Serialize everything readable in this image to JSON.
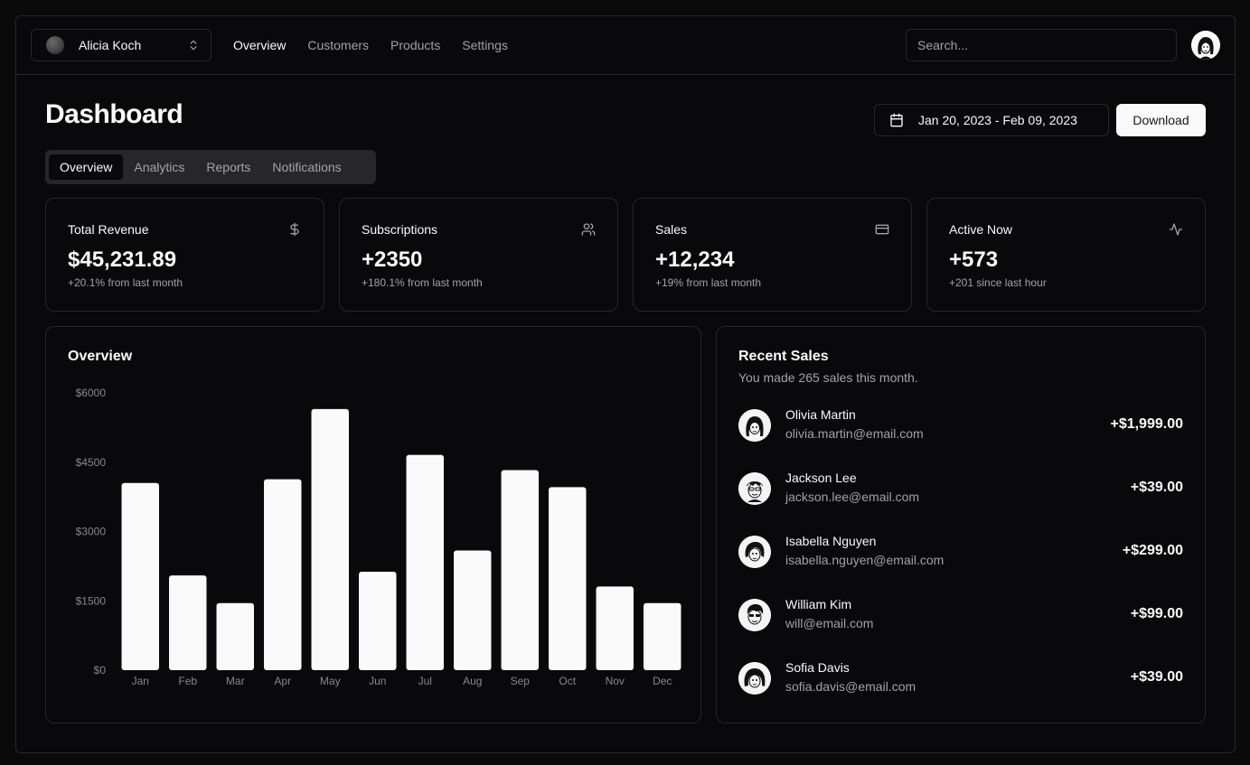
{
  "team": {
    "name": "Alicia Koch"
  },
  "nav": {
    "links": [
      {
        "label": "Overview",
        "active": true
      },
      {
        "label": "Customers",
        "active": false
      },
      {
        "label": "Products",
        "active": false
      },
      {
        "label": "Settings",
        "active": false
      }
    ]
  },
  "search": {
    "placeholder": "Search..."
  },
  "header": {
    "title": "Dashboard",
    "date_range": "Jan 20, 2023 - Feb 09, 2023",
    "download_label": "Download"
  },
  "tabs": [
    {
      "label": "Overview",
      "active": true
    },
    {
      "label": "Analytics",
      "active": false
    },
    {
      "label": "Reports",
      "active": false
    },
    {
      "label": "Notifications",
      "active": false
    }
  ],
  "stats": [
    {
      "title": "Total Revenue",
      "value": "$45,231.89",
      "sub": "+20.1% from last month",
      "icon": "dollar-icon"
    },
    {
      "title": "Subscriptions",
      "value": "+2350",
      "sub": "+180.1% from last month",
      "icon": "users-icon"
    },
    {
      "title": "Sales",
      "value": "+12,234",
      "sub": "+19% from last month",
      "icon": "credit-card-icon"
    },
    {
      "title": "Active Now",
      "value": "+573",
      "sub": "+201 since last hour",
      "icon": "activity-icon"
    }
  ],
  "overview": {
    "title": "Overview"
  },
  "chart_data": {
    "type": "bar",
    "title": "Overview",
    "categories": [
      "Jan",
      "Feb",
      "Mar",
      "Apr",
      "May",
      "Jun",
      "Jul",
      "Aug",
      "Sep",
      "Oct",
      "Nov",
      "Dec"
    ],
    "values": [
      4050,
      2050,
      1450,
      4130,
      5650,
      2130,
      4660,
      2590,
      4330,
      3960,
      1810,
      1450
    ],
    "y_ticks": [
      "$0",
      "$1500",
      "$3000",
      "$4500",
      "$6000"
    ],
    "ylim": [
      0,
      6000
    ],
    "grid": false,
    "bar_color": "#fafafa"
  },
  "recent_sales": {
    "title": "Recent Sales",
    "description": "You made 265 sales this month.",
    "items": [
      {
        "name": "Olivia Martin",
        "email": "olivia.martin@email.com",
        "amount": "+$1,999.00"
      },
      {
        "name": "Jackson Lee",
        "email": "jackson.lee@email.com",
        "amount": "+$39.00"
      },
      {
        "name": "Isabella Nguyen",
        "email": "isabella.nguyen@email.com",
        "amount": "+$299.00"
      },
      {
        "name": "William Kim",
        "email": "will@email.com",
        "amount": "+$99.00"
      },
      {
        "name": "Sofia Davis",
        "email": "sofia.davis@email.com",
        "amount": "+$39.00"
      }
    ]
  },
  "colors": {
    "background": "#09090b",
    "border": "#27272a",
    "muted": "#a1a1aa",
    "foreground": "#fafafa"
  }
}
